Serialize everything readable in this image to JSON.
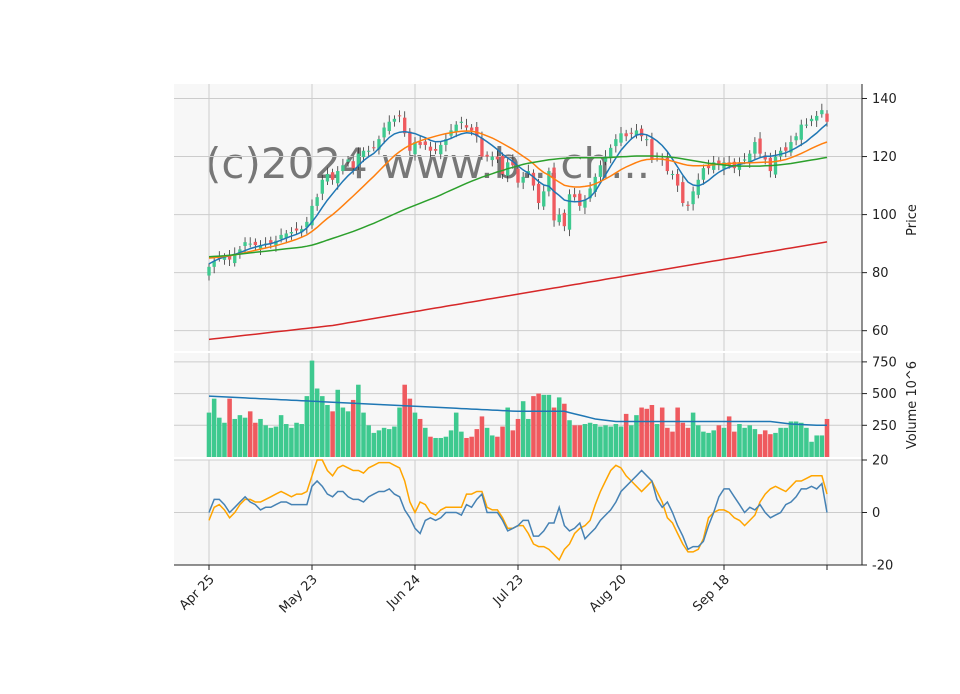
{
  "colors": {
    "up": "#3ec98f",
    "down": "#ef5a5f",
    "sma_short": "#1f77b4",
    "sma_mid": "#ff7f0e",
    "sma_long": "#2ca02c",
    "sma_200": "#d62728",
    "vol_ma": "#1f77b4",
    "osc_fast": "#4682b4",
    "osc_slow": "#ffa500",
    "panel_bg": "#f7f7f7",
    "grid": "#cccccc",
    "watermark": "#e6e6e6"
  },
  "chart_data": {
    "type": "candlestick",
    "watermark": "(c)2024 www.b...ch...",
    "x_ticks": [
      {
        "index": 0,
        "label": "Apr 25"
      },
      {
        "index": 20,
        "label": "May 23"
      },
      {
        "index": 40,
        "label": "Jun 24"
      },
      {
        "index": 60,
        "label": "Jul 23"
      },
      {
        "index": 80,
        "label": "Aug 20"
      },
      {
        "index": 100,
        "label": "Sep 18"
      },
      {
        "index": 120,
        "label": ""
      }
    ],
    "price": {
      "ylabel": "Price",
      "ylim": [
        53,
        145
      ],
      "ticks": [
        60,
        80,
        100,
        120,
        140
      ],
      "closes": [
        82.0,
        84.0,
        85.0,
        85.5,
        84.5,
        86.5,
        88.0,
        90.5,
        90.0,
        89.5,
        89.5,
        90.0,
        90.0,
        91.0,
        93.0,
        93.5,
        94.0,
        94.5,
        95.0,
        97.5,
        103.0,
        106.0,
        112.0,
        114.0,
        112.0,
        115.0,
        117.0,
        119.0,
        116.0,
        121.0,
        122.0,
        122.0,
        123.0,
        126.0,
        130.0,
        132.0,
        133.0,
        134.0,
        128.0,
        122.0,
        125.0,
        124.0,
        124.0,
        122.0,
        122.0,
        124.0,
        126.0,
        129.0,
        131.0,
        132.0,
        130.0,
        129.0,
        127.0,
        120.0,
        120.0,
        120.0,
        119.0,
        114.0,
        118.0,
        117.0,
        111.0,
        113.0,
        115.0,
        110.0,
        104.0,
        108.0,
        115.0,
        98.0,
        100.0,
        96.0,
        107.0,
        106.0,
        103.0,
        105.0,
        109.0,
        113.0,
        117.0,
        120.0,
        123.0,
        126.0,
        128.0,
        127.0,
        128.0,
        129.0,
        127.0,
        126.0,
        119.0,
        120.0,
        119.0,
        115.0,
        114.0,
        110.0,
        104.0,
        103.0,
        108.0,
        112.0,
        116.0,
        116.0,
        118.0,
        117.0,
        118.0,
        117.0,
        116.0,
        118.0,
        119.0,
        121.0,
        125.0,
        121.0,
        119.0,
        115.0,
        120.0,
        122.0,
        122.0,
        125.0,
        127.0,
        131.0,
        131.0,
        133.0,
        134.0,
        136.0,
        132.0
      ],
      "sma_short": [
        83.0,
        84.0,
        84.8,
        85.4,
        85.8,
        86.3,
        86.9,
        87.6,
        88.3,
        88.8,
        89.3,
        89.7,
        90.0,
        90.5,
        91.2,
        91.9,
        92.6,
        93.2,
        94.0,
        95.4,
        97.5,
        99.8,
        102.5,
        105.0,
        107.2,
        109.4,
        111.5,
        113.4,
        115.0,
        116.9,
        118.6,
        119.9,
        121.1,
        122.8,
        124.8,
        126.6,
        127.8,
        128.4,
        128.6,
        128.3,
        127.9,
        127.2,
        126.5,
        125.6,
        125.1,
        125.2,
        125.6,
        126.3,
        127.1,
        127.8,
        128.2,
        128.0,
        127.4,
        126.3,
        125.1,
        123.8,
        122.4,
        120.8,
        119.5,
        118.3,
        116.8,
        115.4,
        114.3,
        113.0,
        111.4,
        110.2,
        109.8,
        108.0,
        106.6,
        105.0,
        104.6,
        104.4,
        104.5,
        105.0,
        106.0,
        108.0,
        110.9,
        113.7,
        116.7,
        119.5,
        122.2,
        124.2,
        126.1,
        127.4,
        127.8,
        127.5,
        126.6,
        125.4,
        123.8,
        121.7,
        119.1,
        116.4,
        113.6,
        111.2,
        110.2,
        109.9,
        110.6,
        111.8,
        113.3,
        114.6,
        115.6,
        116.3,
        116.8,
        117.3,
        117.7,
        118.1,
        118.9,
        119.6,
        120.1,
        120.1,
        120.4,
        120.8,
        121.3,
        122.1,
        123.0,
        124.1,
        125.2,
        126.7,
        128.1,
        129.8,
        131.3
      ]
    },
    "ma_series": [
      {
        "key": "sma_mid",
        "values": [
          85.0,
          85.2,
          85.4,
          85.6,
          85.8,
          86.1,
          86.5,
          86.9,
          87.3,
          87.7,
          88.1,
          88.5,
          88.9,
          89.3,
          89.8,
          90.3,
          90.9,
          91.5,
          92.2,
          93.0,
          94.2,
          95.6,
          97.2,
          98.7,
          100.0,
          101.5,
          103.1,
          104.8,
          106.4,
          108.1,
          109.8,
          111.5,
          113.2,
          115.0,
          116.8,
          118.6,
          120.3,
          121.7,
          122.9,
          123.9,
          124.7,
          125.4,
          126.0,
          126.5,
          127.0,
          127.5,
          127.9,
          128.2,
          128.5,
          128.7,
          128.8,
          128.7,
          128.4,
          127.8,
          127.1,
          126.4,
          125.5,
          124.5,
          123.5,
          122.5,
          121.3,
          120.1,
          118.9,
          117.5,
          115.9,
          114.5,
          113.6,
          112.3,
          111.2,
          110.1,
          109.7,
          109.5,
          109.5,
          109.7,
          110.0,
          110.6,
          111.4,
          112.3,
          113.3,
          114.4,
          115.5,
          116.4,
          117.2,
          118.0,
          118.6,
          119.0,
          119.1,
          119.2,
          119.1,
          118.8,
          118.4,
          117.9,
          117.4,
          117.0,
          116.8,
          116.8,
          116.9,
          117.0,
          117.2,
          117.4,
          117.5,
          117.6,
          117.7,
          117.8,
          117.8,
          117.8,
          117.9,
          118.0,
          118.1,
          118.1,
          118.3,
          118.6,
          119.0,
          119.6,
          120.3,
          121.1,
          121.9,
          122.8,
          123.6,
          124.4,
          125.0
        ]
      },
      {
        "key": "sma_long",
        "values": [
          85.5,
          85.6,
          85.7,
          85.8,
          86.0,
          86.2,
          86.4,
          86.6,
          86.8,
          87.0,
          87.2,
          87.4,
          87.6,
          87.8,
          88.0,
          88.2,
          88.4,
          88.6,
          88.8,
          89.1,
          89.5,
          90.0,
          90.6,
          91.2,
          91.8,
          92.4,
          93.0,
          93.6,
          94.2,
          94.9,
          95.6,
          96.3,
          97.0,
          97.8,
          98.6,
          99.4,
          100.2,
          101.0,
          101.8,
          102.5,
          103.2,
          103.9,
          104.6,
          105.3,
          106.0,
          106.8,
          107.6,
          108.4,
          109.2,
          110.0,
          110.8,
          111.5,
          112.2,
          112.9,
          113.5,
          114.1,
          114.7,
          115.2,
          115.8,
          116.3,
          116.8,
          117.3,
          117.7,
          118.0,
          118.3,
          118.6,
          118.9,
          119.1,
          119.3,
          119.4,
          119.5,
          119.6,
          119.6,
          119.6,
          119.6,
          119.6,
          119.6,
          119.6,
          119.7,
          119.8,
          119.9,
          120.0,
          120.1,
          120.2,
          120.2,
          120.2,
          120.2,
          120.1,
          120.0,
          119.9,
          119.7,
          119.5,
          119.2,
          118.9,
          118.6,
          118.3,
          118.0,
          117.7,
          117.5,
          117.3,
          117.1,
          116.9,
          116.8,
          116.7,
          116.7,
          116.7,
          116.7,
          116.7,
          116.8,
          116.9,
          117.0,
          117.2,
          117.4,
          117.6,
          117.9,
          118.2,
          118.5,
          118.8,
          119.1,
          119.4,
          119.7
        ]
      },
      {
        "key": "sma_200",
        "values": [
          57.0,
          57.2,
          57.4,
          57.6,
          57.8,
          58.0,
          58.2,
          58.4,
          58.6,
          58.8,
          59.0,
          59.2,
          59.4,
          59.6,
          59.8,
          60.0,
          60.2,
          60.4,
          60.6,
          60.8,
          61.0,
          61.2,
          61.4,
          61.6,
          61.8,
          62.1,
          62.4,
          62.7,
          63.0,
          63.3,
          63.6,
          63.9,
          64.2,
          64.5,
          64.8,
          65.1,
          65.4,
          65.7,
          66.0,
          66.3,
          66.6,
          66.9,
          67.2,
          67.5,
          67.8,
          68.1,
          68.4,
          68.7,
          69.0,
          69.3,
          69.6,
          69.9,
          70.2,
          70.5,
          70.8,
          71.1,
          71.4,
          71.7,
          72.0,
          72.3,
          72.6,
          72.9,
          73.2,
          73.5,
          73.8,
          74.1,
          74.4,
          74.7,
          75.0,
          75.3,
          75.6,
          75.9,
          76.2,
          76.5,
          76.8,
          77.1,
          77.4,
          77.7,
          78.0,
          78.3,
          78.6,
          78.9,
          79.2,
          79.5,
          79.8,
          80.1,
          80.4,
          80.7,
          81.0,
          81.3,
          81.6,
          81.9,
          82.2,
          82.5,
          82.8,
          83.1,
          83.4,
          83.7,
          84.0,
          84.3,
          84.6,
          84.9,
          85.2,
          85.5,
          85.8,
          86.1,
          86.4,
          86.7,
          87.0,
          87.3,
          87.6,
          87.9,
          88.2,
          88.5,
          88.8,
          89.1,
          89.4,
          89.7,
          90.0,
          90.3,
          90.6
        ]
      }
    ],
    "volume": {
      "ylabel": "Volume  10^6",
      "ylim": [
        0,
        820
      ],
      "ticks": [
        250,
        500,
        750
      ],
      "values": [
        350,
        460,
        310,
        270,
        460,
        300,
        330,
        310,
        360,
        270,
        300,
        250,
        230,
        240,
        330,
        260,
        230,
        270,
        260,
        480,
        760,
        540,
        480,
        410,
        360,
        530,
        390,
        360,
        450,
        570,
        350,
        250,
        190,
        210,
        230,
        220,
        240,
        390,
        570,
        460,
        350,
        300,
        230,
        160,
        150,
        150,
        160,
        210,
        350,
        200,
        150,
        160,
        220,
        320,
        230,
        170,
        160,
        240,
        390,
        210,
        300,
        440,
        300,
        480,
        500,
        490,
        490,
        390,
        470,
        420,
        290,
        250,
        250,
        260,
        270,
        260,
        240,
        250,
        240,
        260,
        240,
        340,
        250,
        330,
        390,
        380,
        410,
        260,
        390,
        230,
        200,
        390,
        270,
        230,
        350,
        250,
        200,
        190,
        210,
        250,
        230,
        320,
        200,
        260,
        230,
        250,
        220,
        180,
        210,
        180,
        190,
        230,
        230,
        280,
        280,
        270,
        230,
        120,
        170,
        170,
        300
      ],
      "ma": [
        480,
        478,
        476,
        474,
        472,
        470,
        468,
        466,
        464,
        462,
        460,
        458,
        456,
        454,
        452,
        450,
        448,
        446,
        444,
        442,
        440,
        438,
        436,
        434,
        432,
        430,
        428,
        426,
        424,
        422,
        420,
        418,
        416,
        414,
        412,
        410,
        408,
        406,
        404,
        402,
        400,
        398,
        396,
        394,
        392,
        390,
        388,
        386,
        384,
        382,
        380,
        378,
        376,
        374,
        372,
        370,
        368,
        366,
        364,
        362,
        360,
        360,
        360,
        360,
        360,
        360,
        360,
        360,
        360,
        360,
        350,
        340,
        330,
        320,
        310,
        300,
        295,
        290,
        285,
        280,
        280,
        280,
        280,
        280,
        280,
        280,
        280,
        280,
        280,
        280,
        280,
        280,
        280,
        280,
        280,
        280,
        280,
        280,
        280,
        280,
        280,
        280,
        280,
        280,
        280,
        280,
        280,
        280,
        280,
        280,
        275,
        270,
        265,
        260,
        258,
        256,
        254,
        252,
        250,
        250,
        250
      ]
    },
    "oscillator": {
      "ylim": [
        -20,
        20
      ],
      "ticks": [
        -20,
        0,
        20
      ],
      "fast": [
        0,
        5,
        5,
        3,
        0,
        2,
        4,
        6,
        4,
        3,
        1,
        2,
        2,
        3,
        4,
        4,
        3,
        3,
        3,
        3,
        10,
        12,
        10,
        7,
        6,
        8,
        8,
        6,
        5,
        5,
        4,
        6,
        7,
        8,
        8,
        9,
        7,
        6,
        1,
        -2,
        -6,
        -8,
        -3,
        -2,
        -3,
        -2,
        0,
        0,
        0,
        -1,
        3,
        2,
        5,
        7,
        0,
        0,
        0,
        -3,
        -7,
        -6,
        -5,
        -3,
        -3,
        -9,
        -9,
        -7,
        -4,
        -4,
        2,
        -5,
        -7,
        -6,
        -4,
        -10,
        -8,
        -6,
        -3,
        -1,
        1,
        4,
        8,
        10,
        12,
        14,
        16,
        14,
        12,
        5,
        2,
        4,
        0,
        -5,
        -9,
        -14,
        -13,
        -13,
        -11,
        -5,
        0,
        6,
        9,
        9,
        6,
        3,
        0,
        2,
        1,
        3,
        0,
        -2,
        -1,
        0,
        3,
        4,
        6,
        9,
        9,
        10,
        9,
        11,
        0
      ],
      "slow": [
        -3,
        2,
        3,
        1,
        -2,
        0,
        3,
        5,
        5,
        4,
        4,
        5,
        6,
        7,
        8,
        7,
        6,
        7,
        7,
        8,
        14,
        20,
        20,
        16,
        14,
        17,
        18,
        17,
        16,
        16,
        15,
        17,
        18,
        19,
        19,
        19,
        18,
        17,
        12,
        4,
        0,
        4,
        3,
        0,
        -1,
        1,
        2,
        2,
        2,
        2,
        7,
        7,
        8,
        8,
        2,
        1,
        1,
        -2,
        -6,
        -6,
        -5,
        -5,
        -8,
        -12,
        -13,
        -13,
        -14,
        -16,
        -18,
        -14,
        -12,
        -8,
        -6,
        -5,
        -3,
        3,
        8,
        12,
        16,
        18,
        17,
        14,
        12,
        10,
        8,
        10,
        12,
        8,
        4,
        -2,
        -4,
        -8,
        -12,
        -15,
        -15,
        -14,
        -10,
        -2,
        0,
        1,
        1,
        0,
        -2,
        -3,
        -5,
        -3,
        -1,
        4,
        7,
        9,
        10,
        9,
        8,
        10,
        12,
        12,
        13,
        14,
        14,
        14,
        7
      ]
    }
  }
}
